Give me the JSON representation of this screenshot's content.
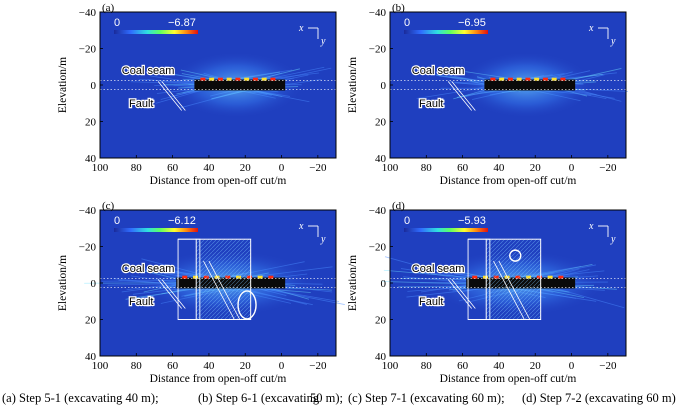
{
  "figure": {
    "panels": [
      {
        "id": "a",
        "label": "(a)",
        "colorbar_min": "0",
        "colorbar_max": "−6.87",
        "step": "Step 5-1",
        "excavation": "excavating 40 m",
        "annotated": false
      },
      {
        "id": "b",
        "label": "(b)",
        "colorbar_min": "0",
        "colorbar_max": "−6.95",
        "step": "Step 6-1",
        "excavation": "excavating 50 m",
        "annotated": false
      },
      {
        "id": "c",
        "label": "(c)",
        "colorbar_min": "0",
        "colorbar_max": "−6.12",
        "step": "Step 7-1",
        "excavation": "excavating 60 m",
        "annotated": true
      },
      {
        "id": "d",
        "label": "(d)",
        "colorbar_min": "0",
        "colorbar_max": "−5.93",
        "step": "Step 7-2",
        "excavation": "excavating 60 m",
        "annotated": true
      }
    ],
    "x_axis": {
      "label": "Distance from open-off cut/m",
      "ticks": [
        "100",
        "80",
        "60",
        "40",
        "20",
        "0",
        "−20"
      ]
    },
    "y_axis": {
      "label": "Elevation/m",
      "ticks": [
        "−40",
        "−20",
        "0",
        "20",
        "40"
      ]
    },
    "annotations": {
      "coal_seam": "Coal seam",
      "fault": "Fault"
    },
    "orientation": {
      "x": "x",
      "y": "y"
    },
    "colors": {
      "field": "#1f3fbf",
      "hot": "#ff2a10",
      "seam": "#0a0a0a"
    }
  },
  "caption": {
    "a": "(a) Step 5-1 (excavating 40 m);",
    "b": "(b) Step 6-1 (excavating",
    "b_tail": "50 m);",
    "c": "(c) Step 7-1 (excavating 60 m);",
    "d": "(d) Step 7-2 (excavating 60 m)"
  }
}
